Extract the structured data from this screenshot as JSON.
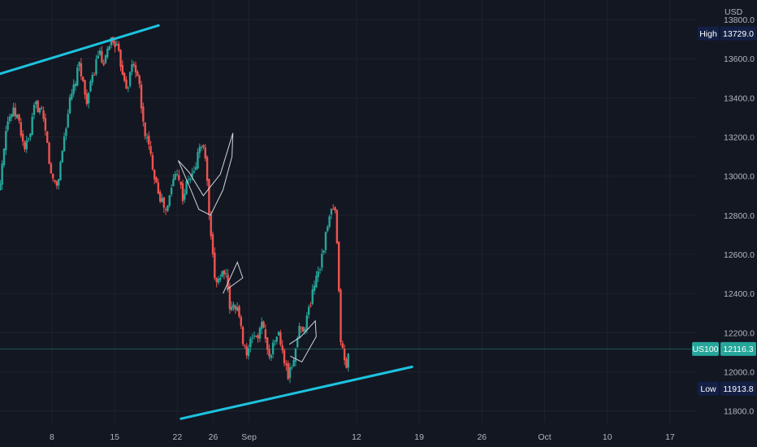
{
  "chart_data": {
    "type": "candlestick",
    "symbol": "US100",
    "currency_label": "USD",
    "ylim": [
      11740,
      13900
    ],
    "y_ticks": [
      "13800.0",
      "13600.0",
      "13400.0",
      "13200.0",
      "13000.0",
      "12800.0",
      "12600.0",
      "12400.0",
      "12200.0",
      "12000.0",
      "11800.0"
    ],
    "x_ticks": [
      {
        "label": "8",
        "day": 8
      },
      {
        "label": "15",
        "day": 15
      },
      {
        "label": "22",
        "day": 22
      },
      {
        "label": "26",
        "day": 26
      },
      {
        "label": "Sep",
        "day": 30
      },
      {
        "label": "12",
        "day": 42
      },
      {
        "label": "19",
        "day": 49
      },
      {
        "label": "26",
        "day": 56
      },
      {
        "label": "Oct",
        "day": 63
      },
      {
        "label": "10",
        "day": 70
      },
      {
        "label": "17",
        "day": 77
      }
    ],
    "markers": {
      "high": {
        "label": "High",
        "value": "13729.0",
        "price": 13729.0
      },
      "last": {
        "label": "US100",
        "value": "12116.3",
        "price": 12116.3
      },
      "low": {
        "label": "Low",
        "value": "11913.8",
        "price": 11913.8
      }
    },
    "colors": {
      "background": "#131722",
      "up": "#26a69a",
      "down": "#ef5350",
      "trendline": "#1cc3df",
      "pattern": "#d1d4dc",
      "last_label": "#26a69a",
      "marker_label": "#131f44",
      "grid": "#1e222d"
    },
    "x_domain": [
      2.2,
      80
    ],
    "trendlines": [
      {
        "name": "upper-resistance",
        "from": {
          "day": 1.3,
          "price": 13510
        },
        "to": {
          "day": 19.9,
          "price": 13770
        }
      },
      {
        "name": "lower-support",
        "from": {
          "day": 22.4,
          "price": 11760
        },
        "to": {
          "day": 48.2,
          "price": 12025
        }
      }
    ],
    "patterns": [
      {
        "name": "flag-1",
        "points": [
          [
            22.1,
            13080
          ],
          [
            23.6,
            12920
          ],
          [
            24.4,
            12830
          ],
          [
            25.7,
            12800
          ],
          [
            27.1,
            12930
          ],
          [
            28.1,
            13100
          ],
          [
            28.2,
            13220
          ],
          [
            26.8,
            13010
          ],
          [
            24.9,
            12900
          ],
          [
            23.3,
            13020
          ],
          [
            22.1,
            13080
          ]
        ]
      },
      {
        "name": "flag-2",
        "points": [
          [
            27.1,
            12400
          ],
          [
            28.7,
            12560
          ],
          [
            29.3,
            12480
          ],
          [
            27.5,
            12420
          ]
        ]
      },
      {
        "name": "flag-3",
        "points": [
          [
            34.5,
            12140
          ],
          [
            35.8,
            12180
          ],
          [
            37.4,
            12260
          ],
          [
            37.5,
            12180
          ],
          [
            35.9,
            12050
          ],
          [
            34.6,
            12080
          ]
        ]
      }
    ],
    "seed_path": [
      [
        1.6,
        12830
      ],
      [
        2.2,
        12970
      ],
      [
        2.9,
        13270
      ],
      [
        3.6,
        13330
      ],
      [
        4.2,
        13300
      ],
      [
        4.9,
        13140
      ],
      [
        5.5,
        13190
      ],
      [
        6.1,
        13370
      ],
      [
        6.8,
        13330
      ],
      [
        7.4,
        13190
      ],
      [
        7.9,
        13000
      ],
      [
        8.6,
        12950
      ],
      [
        9.3,
        13180
      ],
      [
        9.9,
        13360
      ],
      [
        10.5,
        13460
      ],
      [
        11.1,
        13580
      ],
      [
        11.8,
        13380
      ],
      [
        12.4,
        13470
      ],
      [
        13.2,
        13640
      ],
      [
        13.8,
        13550
      ],
      [
        14.5,
        13700
      ],
      [
        15.1,
        13680
      ],
      [
        15.7,
        13570
      ],
      [
        16.4,
        13450
      ],
      [
        17.0,
        13580
      ],
      [
        17.6,
        13520
      ],
      [
        18.2,
        13260
      ],
      [
        18.8,
        13150
      ],
      [
        19.5,
        13000
      ],
      [
        20.1,
        12890
      ],
      [
        20.8,
        12810
      ],
      [
        21.4,
        12960
      ],
      [
        22.0,
        13040
      ],
      [
        22.6,
        12890
      ],
      [
        23.2,
        12980
      ],
      [
        23.9,
        13020
      ],
      [
        24.5,
        13160
      ],
      [
        25.1,
        13120
      ],
      [
        25.7,
        12690
      ],
      [
        26.2,
        12470
      ],
      [
        26.7,
        12480
      ],
      [
        27.3,
        12530
      ],
      [
        27.9,
        12310
      ],
      [
        28.6,
        12350
      ],
      [
        29.2,
        12190
      ],
      [
        29.8,
        12080
      ],
      [
        30.4,
        12190
      ],
      [
        31.0,
        12180
      ],
      [
        31.6,
        12260
      ],
      [
        32.1,
        12080
      ],
      [
        32.7,
        12130
      ],
      [
        33.2,
        12210
      ],
      [
        33.8,
        12080
      ],
      [
        34.4,
        11970
      ],
      [
        35.0,
        12070
      ],
      [
        35.6,
        12220
      ],
      [
        36.2,
        12230
      ],
      [
        36.8,
        12340
      ],
      [
        37.4,
        12480
      ],
      [
        38.0,
        12560
      ],
      [
        38.6,
        12700
      ],
      [
        39.2,
        12830
      ],
      [
        39.7,
        12800
      ],
      [
        40.2,
        12180
      ],
      [
        40.8,
        12010
      ],
      [
        41.2,
        12120
      ]
    ]
  }
}
